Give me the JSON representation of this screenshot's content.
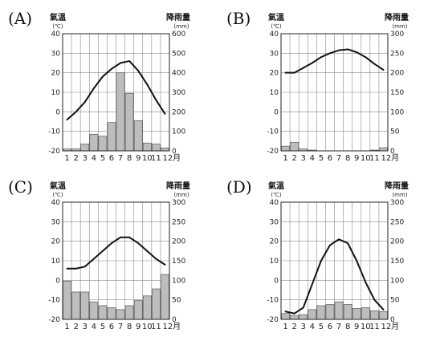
{
  "chart_data": [
    {
      "type": "bar",
      "label": "(A)",
      "temp_axis_title": "氣溫",
      "temp_unit": "(℃)",
      "rain_axis_title": "降雨量",
      "rain_unit": "(mm)",
      "temp_ticks": [
        "40",
        "30",
        "20",
        "10",
        "0",
        "-10",
        "-20"
      ],
      "rain_ticks": [
        "600",
        "500",
        "400",
        "300",
        "200",
        "100",
        "0"
      ],
      "temp_range": [
        -20,
        40
      ],
      "rain_range": [
        0,
        600
      ],
      "categories": [
        "1",
        "2",
        "3",
        "4",
        "5",
        "6",
        "7",
        "8",
        "9",
        "10",
        "11",
        "12月"
      ],
      "series": [
        {
          "kind": "line",
          "axis": "temperature",
          "values": [
            -4,
            0,
            5,
            12,
            18,
            22,
            25,
            26,
            21,
            14,
            6,
            -1
          ]
        },
        {
          "kind": "bar",
          "axis": "precipitation",
          "values": [
            10,
            10,
            35,
            85,
            75,
            145,
            400,
            295,
            155,
            40,
            35,
            15
          ]
        }
      ]
    },
    {
      "type": "bar",
      "label": "(B)",
      "temp_axis_title": "氣溫",
      "temp_unit": "(℃)",
      "rain_axis_title": "降雨量",
      "rain_unit": "(mm)",
      "temp_ticks": [
        "40",
        "30",
        "20",
        "10",
        "0",
        "-10",
        "-20"
      ],
      "rain_ticks": [
        "300",
        "250",
        "200",
        "150",
        "100",
        "50",
        "0"
      ],
      "temp_range": [
        -20,
        40
      ],
      "rain_range": [
        0,
        300
      ],
      "categories": [
        "1",
        "2",
        "3",
        "4",
        "5",
        "6",
        "7",
        "8",
        "9",
        "10",
        "11",
        "12月"
      ],
      "series": [
        {
          "kind": "line",
          "axis": "temperature",
          "values": [
            20,
            20,
            22.5,
            25,
            28,
            30,
            31.5,
            32,
            30.5,
            28,
            24.5,
            21.5
          ]
        },
        {
          "kind": "bar",
          "axis": "precipitation",
          "values": [
            12,
            22,
            5,
            2,
            0,
            0,
            0,
            0,
            0,
            0,
            2,
            8
          ]
        }
      ]
    },
    {
      "type": "bar",
      "label": "(C)",
      "temp_axis_title": "氣溫",
      "temp_unit": "(℃)",
      "rain_axis_title": "降雨量",
      "rain_unit": "(mm)",
      "temp_ticks": [
        "40",
        "30",
        "20",
        "10",
        "0",
        "-10",
        "-20"
      ],
      "rain_ticks": [
        "300",
        "250",
        "200",
        "150",
        "100",
        "50",
        "0"
      ],
      "temp_range": [
        -20,
        40
      ],
      "rain_range": [
        0,
        300
      ],
      "categories": [
        "1",
        "2",
        "3",
        "4",
        "5",
        "6",
        "7",
        "8",
        "9",
        "10",
        "11",
        "12月"
      ],
      "series": [
        {
          "kind": "line",
          "axis": "temperature",
          "values": [
            6,
            6,
            7,
            11,
            15,
            19,
            22,
            22,
            19,
            15,
            11,
            8
          ]
        },
        {
          "kind": "bar",
          "axis": "precipitation",
          "values": [
            98,
            70,
            70,
            45,
            35,
            30,
            25,
            35,
            48,
            60,
            78,
            115
          ]
        }
      ]
    },
    {
      "type": "bar",
      "label": "(D)",
      "temp_axis_title": "氣溫",
      "temp_unit": "(℃)",
      "rain_axis_title": "降雨量",
      "rain_unit": "(mm)",
      "temp_ticks": [
        "40",
        "30",
        "20",
        "10",
        "0",
        "-10",
        "-20"
      ],
      "rain_ticks": [
        "300",
        "250",
        "200",
        "150",
        "100",
        "50",
        "0"
      ],
      "temp_range": [
        -20,
        40
      ],
      "rain_range": [
        0,
        300
      ],
      "categories": [
        "1",
        "2",
        "3",
        "4",
        "5",
        "6",
        "7",
        "8",
        "9",
        "10",
        "11",
        "12月"
      ],
      "series": [
        {
          "kind": "line",
          "axis": "temperature",
          "values": [
            -16,
            -17,
            -14,
            -2,
            10,
            18,
            21,
            19,
            10,
            -1,
            -10,
            -15
          ]
        },
        {
          "kind": "bar",
          "axis": "precipitation",
          "values": [
            15,
            10,
            12,
            25,
            35,
            38,
            45,
            38,
            28,
            30,
            22,
            20
          ]
        }
      ]
    }
  ]
}
